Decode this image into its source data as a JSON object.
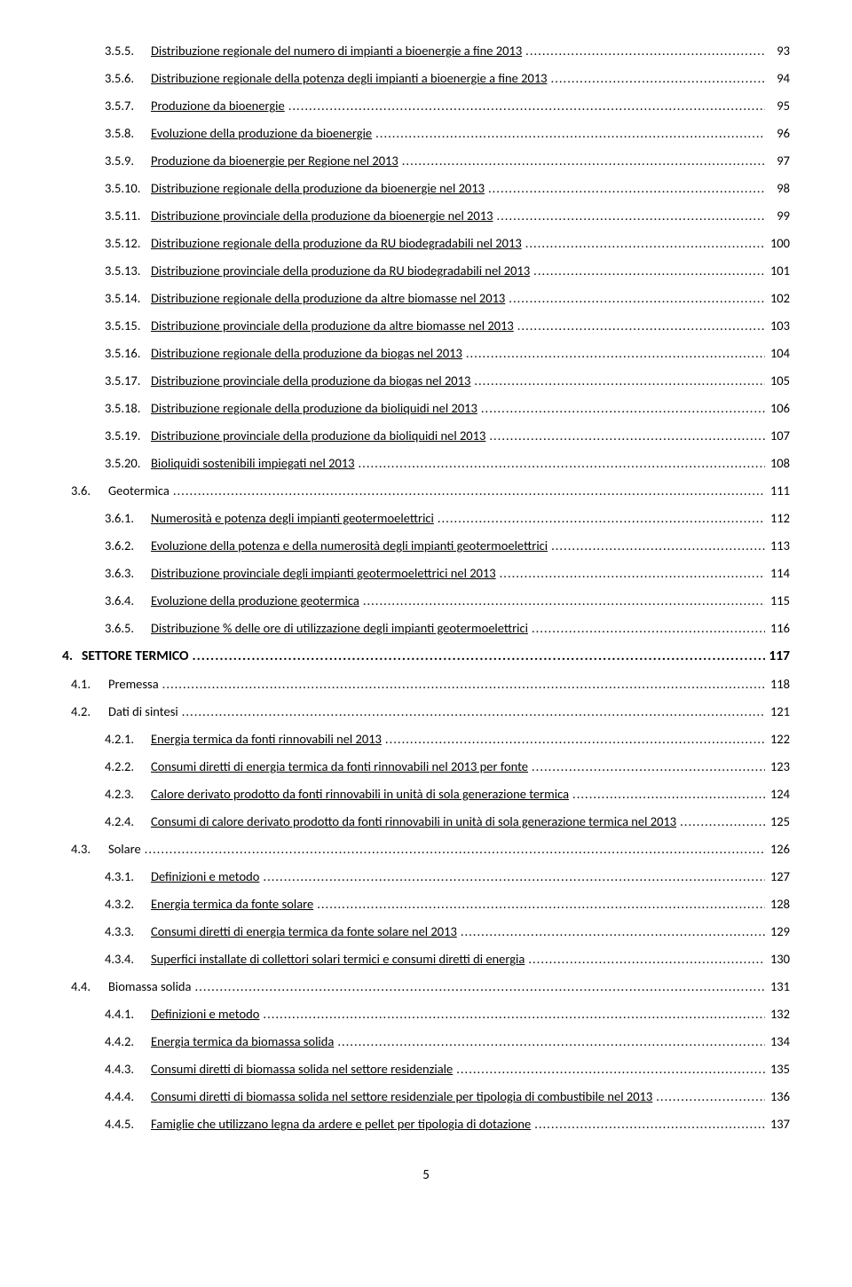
{
  "page_number": "5",
  "styles": {
    "font_family": "Calibri",
    "base_fontsize_pt": 11,
    "heading_fontsize_pt": 12,
    "text_color": "#000000",
    "background_color": "#ffffff",
    "underline_levels": [
      3
    ],
    "bold_levels": [
      1
    ],
    "leader_char": "."
  },
  "toc": [
    {
      "level": 3,
      "num": "3.5.5.",
      "title": "Distribuzione regionale del numero di impianti a bioenergie a fine 2013",
      "page": "93"
    },
    {
      "level": 3,
      "num": "3.5.6.",
      "title": "Distribuzione regionale della potenza degli impianti a bioenergie a fine 2013",
      "page": "94"
    },
    {
      "level": 3,
      "num": "3.5.7.",
      "title": "Produzione da bioenergie",
      "page": "95"
    },
    {
      "level": 3,
      "num": "3.5.8.",
      "title": "Evoluzione della produzione da bioenergie",
      "page": "96"
    },
    {
      "level": 3,
      "num": "3.5.9.",
      "title": "Produzione da bioenergie per Regione nel 2013",
      "page": "97"
    },
    {
      "level": 3,
      "num": "3.5.10.",
      "title": "Distribuzione regionale della produzione da bioenergie nel 2013",
      "page": "98"
    },
    {
      "level": 3,
      "num": "3.5.11.",
      "title": "Distribuzione provinciale della produzione da bioenergie nel 2013",
      "page": "99"
    },
    {
      "level": 3,
      "num": "3.5.12.",
      "title": "Distribuzione regionale della produzione da RU biodegradabili nel 2013",
      "page": "100"
    },
    {
      "level": 3,
      "num": "3.5.13.",
      "title": "Distribuzione provinciale della produzione da RU biodegradabili nel 2013",
      "page": "101"
    },
    {
      "level": 3,
      "num": "3.5.14.",
      "title": "Distribuzione regionale della produzione da altre biomasse nel 2013",
      "page": "102"
    },
    {
      "level": 3,
      "num": "3.5.15.",
      "title": "Distribuzione provinciale della produzione da altre biomasse nel 2013",
      "page": "103"
    },
    {
      "level": 3,
      "num": "3.5.16.",
      "title": "Distribuzione regionale della produzione da biogas nel 2013",
      "page": "104"
    },
    {
      "level": 3,
      "num": "3.5.17.",
      "title": "Distribuzione provinciale della produzione da biogas nel 2013",
      "page": "105"
    },
    {
      "level": 3,
      "num": "3.5.18.",
      "title": "Distribuzione regionale della produzione da bioliquidi nel 2013",
      "page": "106"
    },
    {
      "level": 3,
      "num": "3.5.19.",
      "title": "Distribuzione provinciale della produzione da bioliquidi nel 2013",
      "page": "107"
    },
    {
      "level": 3,
      "num": "3.5.20.",
      "title": "Bioliquidi sostenibili impiegati nel 2013",
      "page": "108"
    },
    {
      "level": 2,
      "num": "3.6.",
      "title": "Geotermica",
      "page": "111"
    },
    {
      "level": 3,
      "num": "3.6.1.",
      "title": "Numerosità e potenza degli impianti geotermoelettrici",
      "page": "112"
    },
    {
      "level": 3,
      "num": "3.6.2.",
      "title": "Evoluzione della potenza e della numerosità degli impianti geotermoelettrici",
      "page": "113"
    },
    {
      "level": 3,
      "num": "3.6.3.",
      "title": "Distribuzione provinciale degli impianti geotermoelettrici nel 2013",
      "page": "114"
    },
    {
      "level": 3,
      "num": "3.6.4.",
      "title": "Evoluzione della produzione geotermica",
      "page": "115"
    },
    {
      "level": 3,
      "num": "3.6.5.",
      "title": "Distribuzione % delle ore di utilizzazione degli impianti geotermoelettrici",
      "page": "116"
    },
    {
      "level": 1,
      "num": "4.",
      "title": "SETTORE TERMICO",
      "page": "117"
    },
    {
      "level": 2,
      "num": "4.1.",
      "title": "Premessa",
      "page": "118"
    },
    {
      "level": 2,
      "num": "4.2.",
      "title": "Dati di sintesi",
      "page": "121"
    },
    {
      "level": 3,
      "num": "4.2.1.",
      "title": "Energia termica da fonti rinnovabili nel 2013",
      "page": "122"
    },
    {
      "level": 3,
      "num": "4.2.2.",
      "title": "Consumi diretti di energia termica da fonti rinnovabili nel 2013 per fonte",
      "page": "123"
    },
    {
      "level": 3,
      "num": "4.2.3.",
      "title": "Calore derivato prodotto da fonti rinnovabili in unità di sola generazione termica",
      "page": "124"
    },
    {
      "level": 3,
      "num": "4.2.4.",
      "title": "Consumi di calore derivato prodotto da fonti rinnovabili in unità di sola generazione termica nel 2013",
      "page": "125"
    },
    {
      "level": 2,
      "num": "4.3.",
      "title": "Solare",
      "page": "126"
    },
    {
      "level": 3,
      "num": "4.3.1.",
      "title": "Definizioni e metodo",
      "page": "127"
    },
    {
      "level": 3,
      "num": "4.3.2.",
      "title": "Energia termica da fonte solare",
      "page": "128"
    },
    {
      "level": 3,
      "num": "4.3.3.",
      "title": "Consumi diretti di energia termica da fonte solare nel 2013",
      "page": "129"
    },
    {
      "level": 3,
      "num": "4.3.4.",
      "title": "Superfici installate di collettori solari termici e consumi diretti di energia",
      "page": "130"
    },
    {
      "level": 2,
      "num": "4.4.",
      "title": "Biomassa solida",
      "page": "131"
    },
    {
      "level": 3,
      "num": "4.4.1.",
      "title": "Definizioni e metodo",
      "page": "132"
    },
    {
      "level": 3,
      "num": "4.4.2.",
      "title": "Energia termica da biomassa solida",
      "page": "134"
    },
    {
      "level": 3,
      "num": "4.4.3.",
      "title": "Consumi diretti di biomassa solida nel settore residenziale",
      "page": "135"
    },
    {
      "level": 3,
      "num": "4.4.4.",
      "title": "Consumi diretti di biomassa solida nel settore residenziale per tipologia di combustibile nel 2013",
      "page": "136"
    },
    {
      "level": 3,
      "num": "4.4.5.",
      "title": "Famiglie che utilizzano legna da ardere e pellet per tipologia di dotazione",
      "page": "137"
    }
  ]
}
